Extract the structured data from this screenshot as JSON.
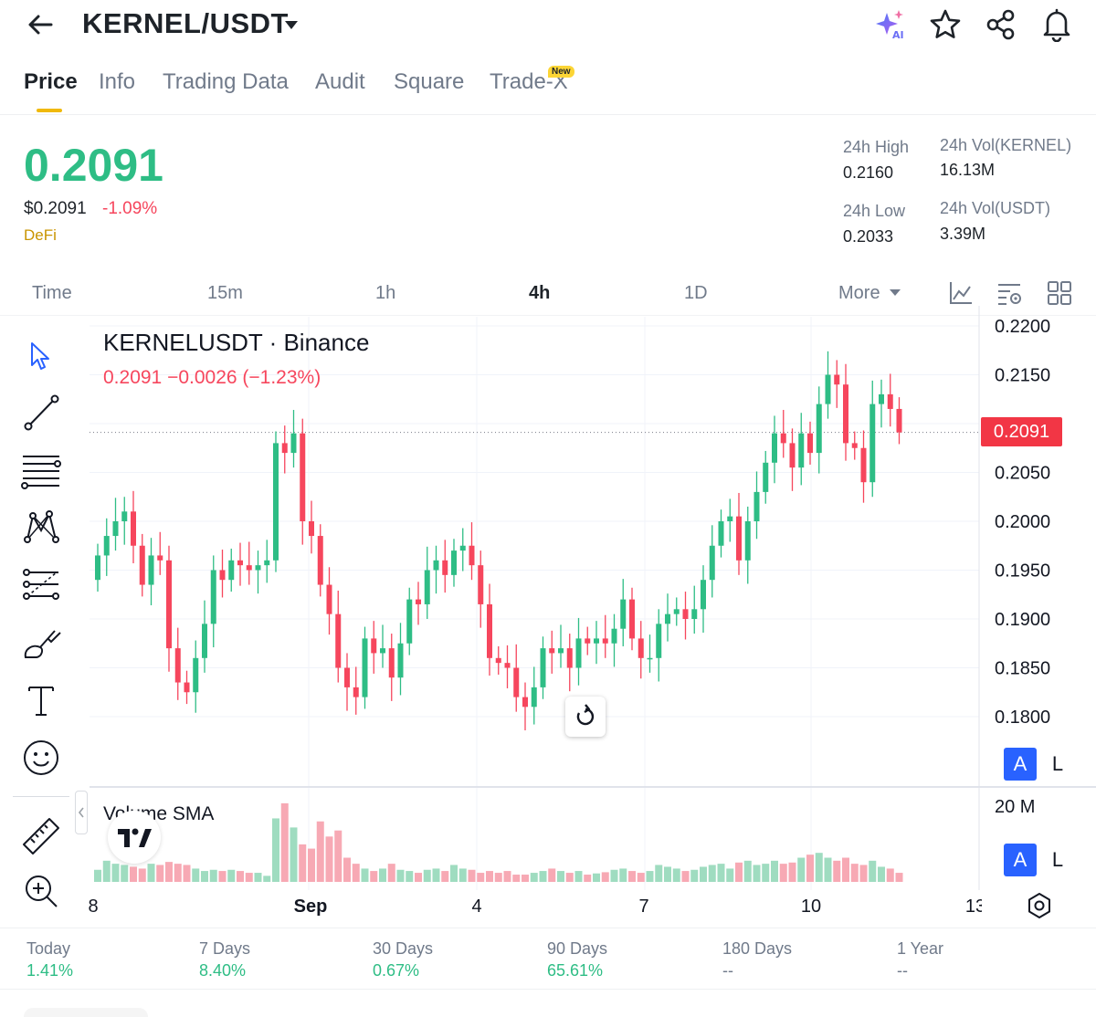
{
  "header": {
    "pair": "KERNEL/USDT",
    "icons": [
      "back-arrow-icon",
      "caret-down-icon",
      "ai-sparkle-icon",
      "star-icon",
      "share-icon",
      "bell-icon"
    ]
  },
  "tabs": [
    {
      "label": "Price",
      "active": true
    },
    {
      "label": "Info"
    },
    {
      "label": "Trading Data"
    },
    {
      "label": "Audit"
    },
    {
      "label": "Square"
    },
    {
      "label": "Trade-X",
      "badge": "New"
    }
  ],
  "price": {
    "last": "0.2091",
    "usd": "$0.2091",
    "change_pct": "-1.09%",
    "sector": "DeFi",
    "color_up": "#2ebd85",
    "color_down": "#f6465d"
  },
  "stats": {
    "high_label": "24h High",
    "high_value": "0.2160",
    "low_label": "24h Low",
    "low_value": "0.2033",
    "vol_base_label": "24h Vol(KERNEL)",
    "vol_base_value": "16.13M",
    "vol_quote_label": "24h Vol(USDT)",
    "vol_quote_value": "3.39M"
  },
  "timeframes": {
    "items": [
      "Time",
      "15m",
      "1h",
      "4h",
      "1D",
      "More"
    ],
    "active": "4h"
  },
  "chart": {
    "title": "KERNELUSDT · Binance",
    "ohlc_legend": "0.2091  −0.0026 (−1.23%)",
    "volume_title": "Volume SMA",
    "last_price_tag": "0.2091",
    "volume_axis_label": "20 M",
    "scale_auto": "A",
    "scale_log": "L"
  },
  "chart_data": {
    "type": "candlestick",
    "ylim": [
      0.176,
      0.22
    ],
    "yticks": [
      "0.2200",
      "0.2150",
      "0.2050",
      "0.2000",
      "0.1950",
      "0.1900",
      "0.1850",
      "0.1800"
    ],
    "xticks": [
      "8",
      "Sep",
      "4",
      "7",
      "10",
      "13"
    ],
    "close": [
      0.1965,
      0.1985,
      0.2,
      0.201,
      0.1975,
      0.1935,
      0.1965,
      0.196,
      0.187,
      0.1835,
      0.1825,
      0.186,
      0.1895,
      0.195,
      0.194,
      0.196,
      0.1955,
      0.195,
      0.1955,
      0.196,
      0.208,
      0.207,
      0.209,
      0.2,
      0.1985,
      0.1935,
      0.1905,
      0.185,
      0.183,
      0.182,
      0.188,
      0.1865,
      0.187,
      0.184,
      0.1875,
      0.192,
      0.1915,
      0.195,
      0.196,
      0.1945,
      0.197,
      0.1975,
      0.1955,
      0.1915,
      0.186,
      0.1855,
      0.185,
      0.182,
      0.181,
      0.183,
      0.187,
      0.1865,
      0.187,
      0.185,
      0.188,
      0.1875,
      0.188,
      0.1875,
      0.189,
      0.192,
      0.188,
      0.186,
      0.186,
      0.1895,
      0.1905,
      0.191,
      0.19,
      0.191,
      0.194,
      0.1975,
      0.2,
      0.2005,
      0.196,
      0.2,
      0.203,
      0.206,
      0.209,
      0.208,
      0.2055,
      0.209,
      0.207,
      0.212,
      0.215,
      0.214,
      0.208,
      0.2075,
      0.204,
      0.212,
      0.213,
      0.2115,
      0.2091
    ],
    "volume_scale": [
      0,
      20000000
    ],
    "volume_relative": [
      0.2,
      0.35,
      0.3,
      0.28,
      0.25,
      0.22,
      0.3,
      0.28,
      0.33,
      0.3,
      0.28,
      0.22,
      0.18,
      0.2,
      0.18,
      0.2,
      0.18,
      0.15,
      0.15,
      0.1,
      1.05,
      1.3,
      0.9,
      0.62,
      0.55,
      1.0,
      0.75,
      0.85,
      0.4,
      0.3,
      0.22,
      0.18,
      0.22,
      0.3,
      0.2,
      0.18,
      0.15,
      0.2,
      0.22,
      0.18,
      0.28,
      0.22,
      0.2,
      0.15,
      0.18,
      0.15,
      0.18,
      0.12,
      0.12,
      0.15,
      0.18,
      0.22,
      0.18,
      0.15,
      0.18,
      0.12,
      0.14,
      0.16,
      0.2,
      0.22,
      0.18,
      0.15,
      0.18,
      0.28,
      0.25,
      0.22,
      0.18,
      0.2,
      0.25,
      0.28,
      0.3,
      0.22,
      0.32,
      0.35,
      0.28,
      0.3,
      0.35,
      0.3,
      0.32,
      0.4,
      0.45,
      0.48,
      0.4,
      0.35,
      0.4,
      0.3,
      0.28,
      0.35,
      0.25,
      0.22,
      0.15
    ]
  },
  "toolbar": {
    "icons": [
      "cursor-icon",
      "trend-line-icon",
      "fib-lines-icon",
      "pattern-icon",
      "forecast-icon",
      "brush-icon",
      "text-icon",
      "emoji-icon",
      "ruler-icon",
      "zoom-in-icon"
    ]
  },
  "performance": [
    {
      "label": "Today",
      "value": "1.41%"
    },
    {
      "label": "7 Days",
      "value": "8.40%"
    },
    {
      "label": "30 Days",
      "value": "0.67%"
    },
    {
      "label": "90 Days",
      "value": "65.61%"
    },
    {
      "label": "180 Days",
      "value": "--"
    },
    {
      "label": "1 Year",
      "value": "--"
    }
  ]
}
